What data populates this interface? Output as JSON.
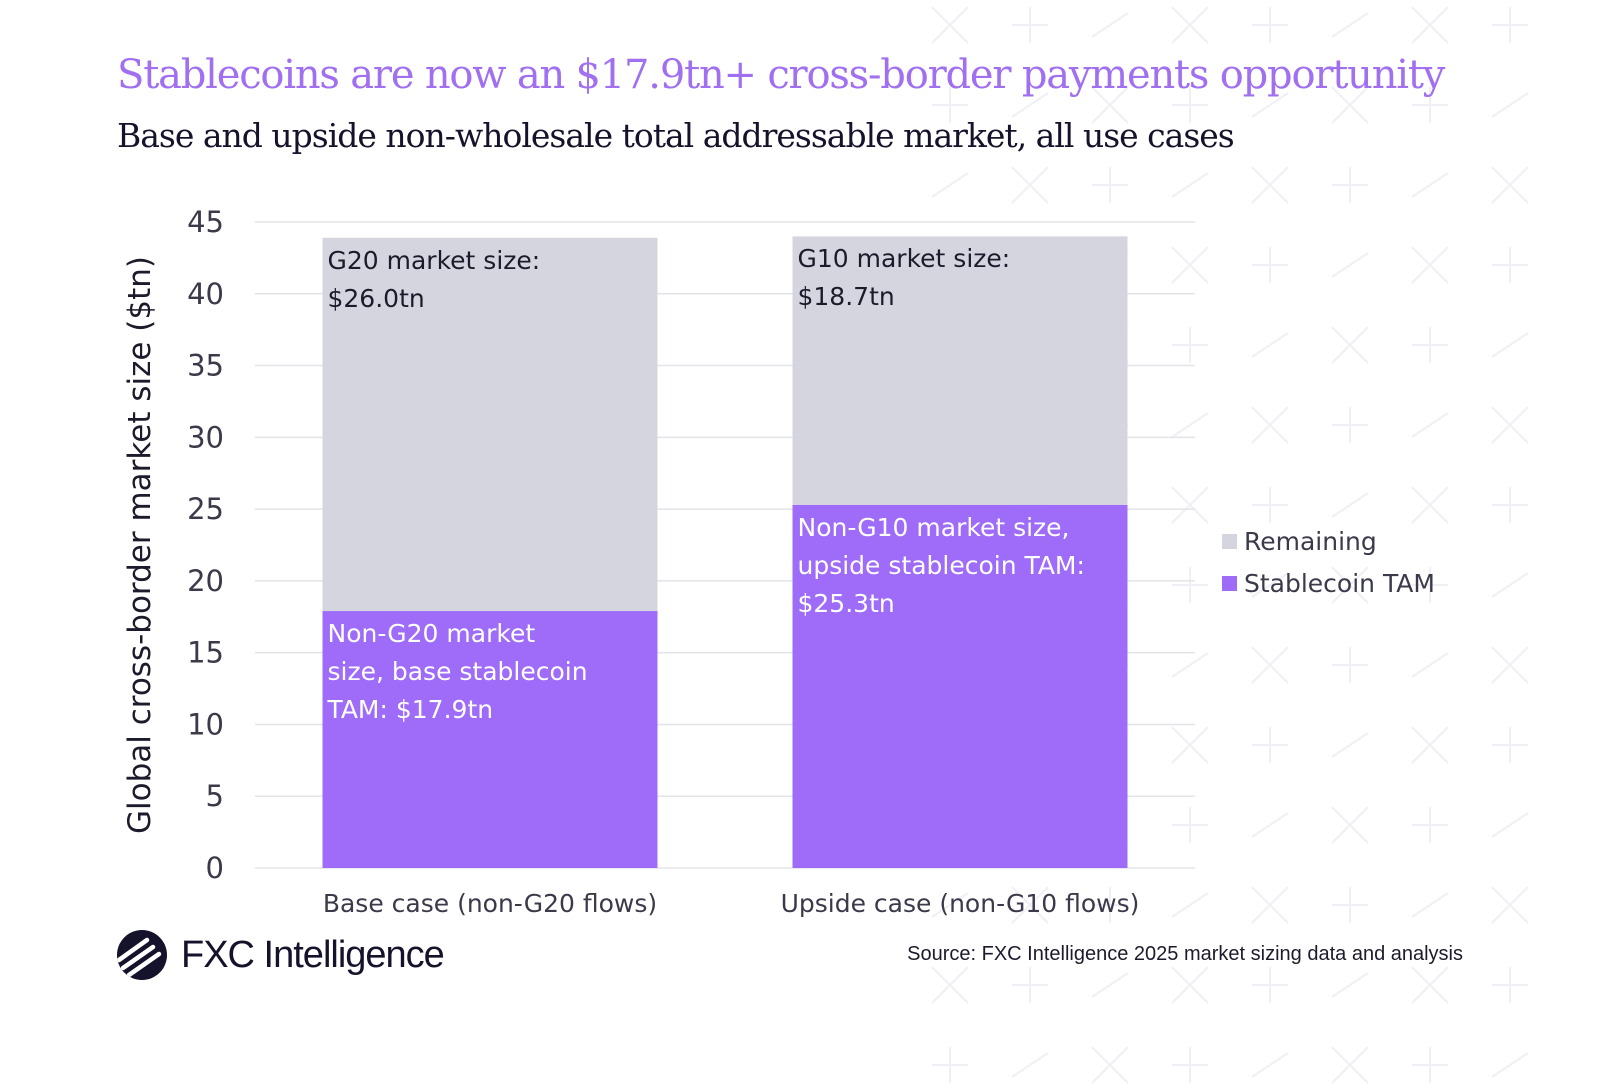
{
  "header": {
    "title": "Stablecoins are now an $17.9tn+ cross-border payments opportunity",
    "subtitle": "Base and upside non-wholesale total addressable market, all use cases"
  },
  "colors": {
    "title": "#a070f0",
    "stablecoin": "#9e6cf8",
    "remaining": "#d5d5df",
    "gridline": "#e3e3ea",
    "axis_text": "#3a3a4a"
  },
  "chart_data": {
    "type": "bar",
    "stacked": true,
    "ylabel": "Global cross-border market size ($tn)",
    "xlabel": "",
    "ylim": [
      0,
      45
    ],
    "yticks": [
      "0",
      "5",
      "10",
      "15",
      "20",
      "25",
      "30",
      "35",
      "40",
      "45"
    ],
    "grid": true,
    "legend_position": "right",
    "categories": [
      "Base case (non-G20 flows)",
      "Upside case (non-G10 flows)"
    ],
    "series": [
      {
        "name": "Stablecoin TAM",
        "values": [
          17.9,
          25.3
        ]
      },
      {
        "name": "Remaining",
        "values": [
          26.0,
          18.7
        ]
      }
    ],
    "annotations": [
      {
        "text": "G20 market size:\n$26.0tn",
        "category": "Base case (non-G20 flows)",
        "segment": "Remaining"
      },
      {
        "text": "Non-G20 market\nsize, base stablecoin\nTAM: $17.9tn",
        "category": "Base case (non-G20 flows)",
        "segment": "Stablecoin TAM"
      },
      {
        "text": "G10 market size:\n$18.7tn",
        "category": "Upside case (non-G10 flows)",
        "segment": "Remaining"
      },
      {
        "text": "Non-G10 market size,\nupside stablecoin TAM:\n$25.3tn",
        "category": "Upside case (non-G10 flows)",
        "segment": "Stablecoin TAM"
      }
    ],
    "legend": [
      "Remaining",
      "Stablecoin TAM"
    ]
  },
  "footer": {
    "logo_text": "FXC Intelligence",
    "logo_icon": "fxc-logo-icon",
    "source": "Source: FXC Intelligence 2025 market sizing data and analysis"
  }
}
